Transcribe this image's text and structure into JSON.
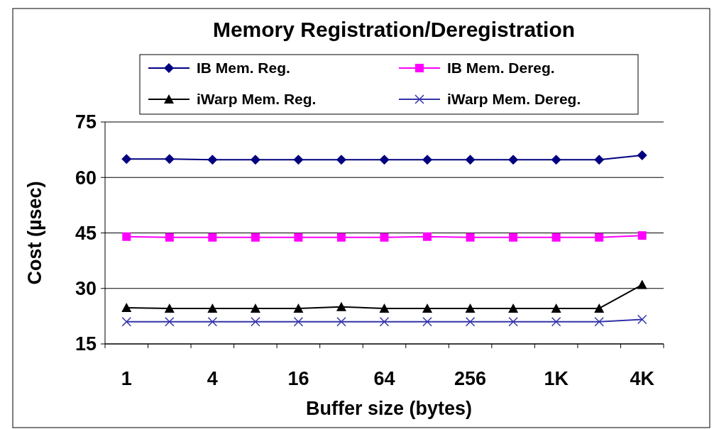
{
  "chart_data": {
    "type": "line",
    "title": "Memory Registration/Deregistration",
    "xlabel": "Buffer size (bytes)",
    "ylabel": "Cost (µsec)",
    "categories": [
      "1",
      null,
      "4",
      null,
      "16",
      null,
      "64",
      null,
      "256",
      null,
      "1K",
      null,
      "4K"
    ],
    "series": [
      {
        "name": "IB Mem. Reg.",
        "color": "#000080",
        "marker": "diamond",
        "values": [
          65,
          65,
          64.8,
          64.8,
          64.8,
          64.8,
          64.8,
          64.8,
          64.8,
          64.8,
          64.8,
          64.8,
          66
        ]
      },
      {
        "name": "IB Mem. Dereg.",
        "color": "#ff00ff",
        "marker": "square",
        "values": [
          44,
          43.8,
          43.8,
          43.8,
          43.8,
          43.8,
          43.8,
          44,
          43.8,
          43.8,
          43.8,
          43.8,
          44.3
        ]
      },
      {
        "name": "iWarp Mem. Reg.",
        "color": "#000000",
        "marker": "triangle",
        "values": [
          24.8,
          24.6,
          24.6,
          24.6,
          24.6,
          25,
          24.6,
          24.6,
          24.6,
          24.6,
          24.6,
          24.6,
          31
        ]
      },
      {
        "name": "iWarp Mem. Dereg.",
        "color": "#3333aa",
        "marker": "cross",
        "values": [
          21,
          21,
          21,
          21,
          21,
          21,
          21,
          21,
          21,
          21,
          21,
          21,
          21.6
        ]
      }
    ],
    "ylim": [
      15,
      75
    ],
    "yticks": [
      15,
      30,
      45,
      60,
      75
    ],
    "grid": "y",
    "legend": "top",
    "line_style": "solid"
  }
}
